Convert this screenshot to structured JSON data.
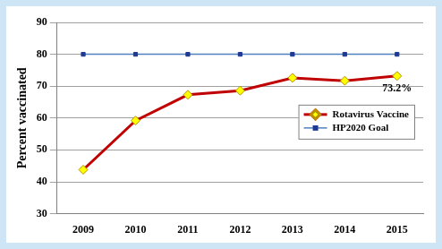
{
  "chart_data": {
    "type": "line",
    "y_label": "Percent vaccinated",
    "categories": [
      "2009",
      "2010",
      "2011",
      "2012",
      "2013",
      "2014",
      "2015"
    ],
    "series": [
      {
        "name": "Rotavirus Vaccine",
        "color": "#c00000",
        "marker": "diamond",
        "values": [
          43.8,
          59.2,
          67.3,
          68.6,
          72.6,
          71.7,
          73.2
        ]
      },
      {
        "name": "HP2020 Goal",
        "color": "#4f81bd",
        "marker": "square",
        "values": [
          80,
          80,
          80,
          80,
          80,
          80,
          80
        ]
      }
    ],
    "annotations": [
      {
        "category": "2015",
        "value": 73.2,
        "label": "73.2%"
      }
    ],
    "ylim": [
      30,
      90
    ],
    "yticks": [
      30,
      40,
      50,
      60,
      70,
      80,
      90
    ],
    "grid": true,
    "legend": "right"
  }
}
